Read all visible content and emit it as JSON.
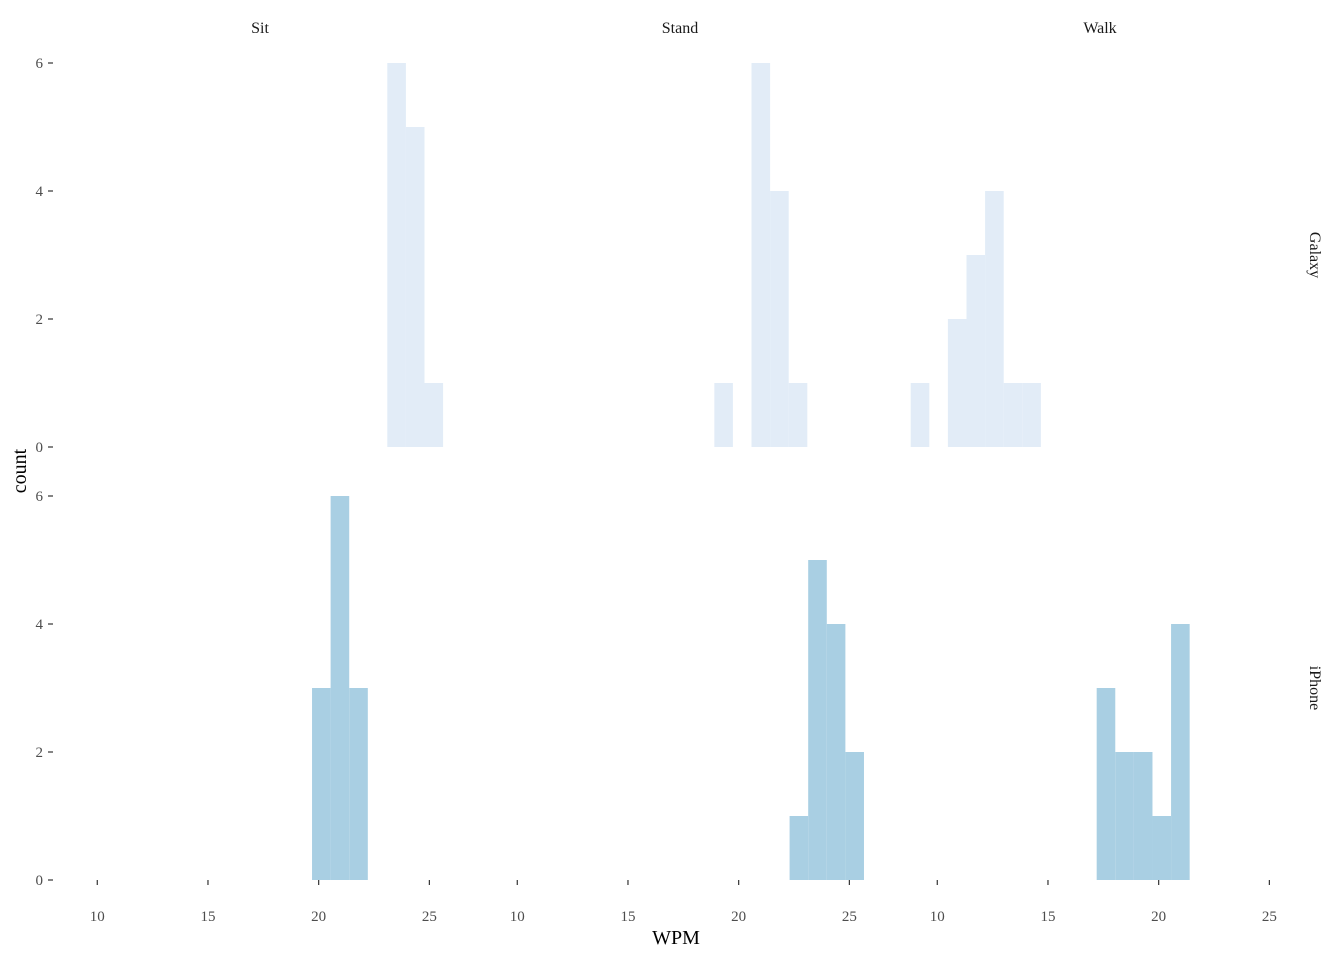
{
  "chart_data": {
    "type": "bar",
    "chart_kind": "faceted histogram",
    "xlabel": "WPM",
    "ylabel": "count",
    "ylim": [
      0,
      6
    ],
    "y_ticks": [
      0,
      2,
      4,
      6
    ],
    "bin_width": 0.84,
    "grid": false,
    "legend": "none",
    "columns": [
      {
        "label": "Sit",
        "x_ticks": [
          10,
          15,
          20,
          25
        ]
      },
      {
        "label": "Stand",
        "x_ticks": [
          10,
          15,
          20,
          25
        ]
      },
      {
        "label": "Walk",
        "x_ticks": [
          10,
          15,
          20,
          25
        ]
      }
    ],
    "rows": [
      {
        "label": "Galaxy",
        "color": "#e2ecf7"
      },
      {
        "label": "iPhone",
        "color": "#a9cfe3"
      }
    ],
    "panels": [
      {
        "row": "Galaxy",
        "column": "Sit",
        "bins": [
          {
            "x0": 23.1,
            "count": 6
          },
          {
            "x0": 23.94,
            "count": 5
          },
          {
            "x0": 24.78,
            "count": 1
          }
        ]
      },
      {
        "row": "Galaxy",
        "column": "Stand",
        "bins": [
          {
            "x0": 18.9,
            "count": 1
          },
          {
            "x0": 20.58,
            "count": 6
          },
          {
            "x0": 21.42,
            "count": 4
          },
          {
            "x0": 22.26,
            "count": 1
          }
        ]
      },
      {
        "row": "Galaxy",
        "column": "Walk",
        "bins": [
          {
            "x0": 8.8,
            "count": 1
          },
          {
            "x0": 10.48,
            "count": 2
          },
          {
            "x0": 11.32,
            "count": 3
          },
          {
            "x0": 12.16,
            "count": 4
          },
          {
            "x0": 13.0,
            "count": 1
          },
          {
            "x0": 13.84,
            "count": 1
          }
        ]
      },
      {
        "row": "iPhone",
        "column": "Sit",
        "bins": [
          {
            "x0": 19.7,
            "count": 3
          },
          {
            "x0": 20.54,
            "count": 6
          },
          {
            "x0": 21.38,
            "count": 3
          }
        ]
      },
      {
        "row": "iPhone",
        "column": "Stand",
        "bins": [
          {
            "x0": 22.3,
            "count": 1
          },
          {
            "x0": 23.14,
            "count": 5
          },
          {
            "x0": 23.98,
            "count": 4
          },
          {
            "x0": 24.82,
            "count": 2
          }
        ]
      },
      {
        "row": "iPhone",
        "column": "Walk",
        "bins": [
          {
            "x0": 17.2,
            "count": 3
          },
          {
            "x0": 18.04,
            "count": 2
          },
          {
            "x0": 18.88,
            "count": 2
          },
          {
            "x0": 19.72,
            "count": 1
          },
          {
            "x0": 20.56,
            "count": 4
          }
        ]
      }
    ]
  }
}
